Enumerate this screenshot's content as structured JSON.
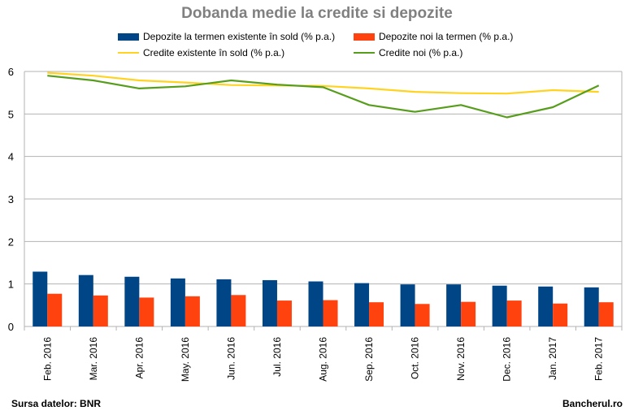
{
  "chart_data": {
    "type": "bar",
    "title": "Dobanda medie la credite si depozite",
    "categories": [
      "Feb. 2016",
      "Mar. 2016",
      "Apr. 2016",
      "May. 2016",
      "Jun. 2016",
      "Jul. 2016",
      "Aug. 2016",
      "Sep. 2016",
      "Oct. 2016",
      "Nov. 2016",
      "Dec. 2016",
      "Jan. 2017",
      "Feb. 2017"
    ],
    "ylim": [
      0,
      6
    ],
    "yticks": [
      "0",
      "1",
      "2",
      "3",
      "4",
      "5",
      "6"
    ],
    "grid": true,
    "legend_position": "top",
    "series": [
      {
        "name": "Depozite la termen existente în sold (% p.a.)",
        "kind": "bar",
        "color": "#004586",
        "values": [
          1.29,
          1.21,
          1.17,
          1.13,
          1.11,
          1.09,
          1.06,
          1.02,
          0.99,
          0.99,
          0.96,
          0.94,
          0.92
        ]
      },
      {
        "name": "Depozite noi la termen (% p.a.)",
        "kind": "bar",
        "color": "#ff420e",
        "values": [
          0.77,
          0.73,
          0.68,
          0.71,
          0.74,
          0.61,
          0.62,
          0.57,
          0.53,
          0.58,
          0.61,
          0.54,
          0.57
        ]
      },
      {
        "name": "Credite existente în sold (% p.a.)",
        "kind": "line",
        "color": "#ffd320",
        "values": [
          5.97,
          5.9,
          5.79,
          5.74,
          5.68,
          5.67,
          5.66,
          5.6,
          5.52,
          5.49,
          5.48,
          5.56,
          5.52
        ]
      },
      {
        "name": "Credite noi (% p.a.)",
        "kind": "line",
        "color": "#579d1c",
        "values": [
          5.9,
          5.79,
          5.6,
          5.65,
          5.79,
          5.69,
          5.63,
          5.21,
          5.05,
          5.21,
          4.92,
          5.16,
          5.67
        ]
      }
    ]
  },
  "footer": {
    "source": "Sursa datelor: BNR",
    "brand": "Bancherul.ro"
  }
}
